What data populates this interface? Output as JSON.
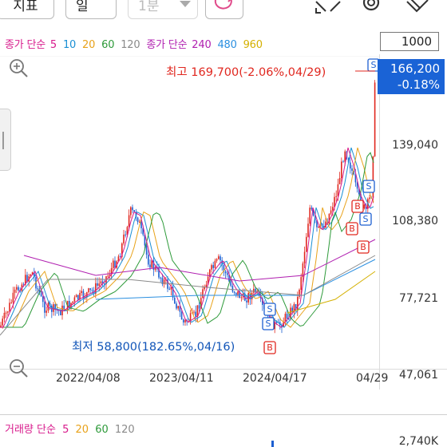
{
  "toolbar": {
    "indicator_label": "지표",
    "period_label": "일",
    "minute_label": "1분"
  },
  "legend": {
    "price_ma_title_1": "종가 단순",
    "price_ma_short": [
      {
        "label": "5",
        "color": "#d81b8c"
      },
      {
        "label": "10",
        "color": "#1a8fd4"
      },
      {
        "label": "20",
        "color": "#e8a21a"
      },
      {
        "label": "60",
        "color": "#2e9a3a"
      },
      {
        "label": "120",
        "color": "#8a8a8a"
      }
    ],
    "price_ma_title_2": "종가 단순",
    "price_ma_long": [
      {
        "label": "240",
        "color": "#b01fb0"
      },
      {
        "label": "480",
        "color": "#2a8fe0"
      },
      {
        "label": "960",
        "color": "#d4b000"
      }
    ]
  },
  "scale_value": "1000",
  "price_axis": [
    "139,040",
    "108,380",
    "77,721",
    "47,061"
  ],
  "current_price": {
    "price": "166,200",
    "change": "-0.18%"
  },
  "high_annotation": "최고 169,700(-2.06%,04/29)",
  "low_annotation": "최저 58,800(182.65%,04/16)",
  "date_axis": [
    "2022/04/08",
    "2023/04/11",
    "2024/04/17",
    "04/29"
  ],
  "volume": {
    "title": "거래량 단순",
    "ma": [
      {
        "label": "5",
        "color": "#d81b8c"
      },
      {
        "label": "20",
        "color": "#e8a21a"
      },
      {
        "label": "60",
        "color": "#2e9a3a"
      },
      {
        "label": "120",
        "color": "#8a8a8a"
      }
    ],
    "axis_value": "2,740K"
  },
  "signal_markers": {
    "sell": "S",
    "buy": "B"
  },
  "colors": {
    "up": "#e0271f",
    "down": "#1c5fd1",
    "current_price_box": "#1a63d6",
    "high_text": "#e0271f",
    "low_text": "#1155b8"
  }
}
